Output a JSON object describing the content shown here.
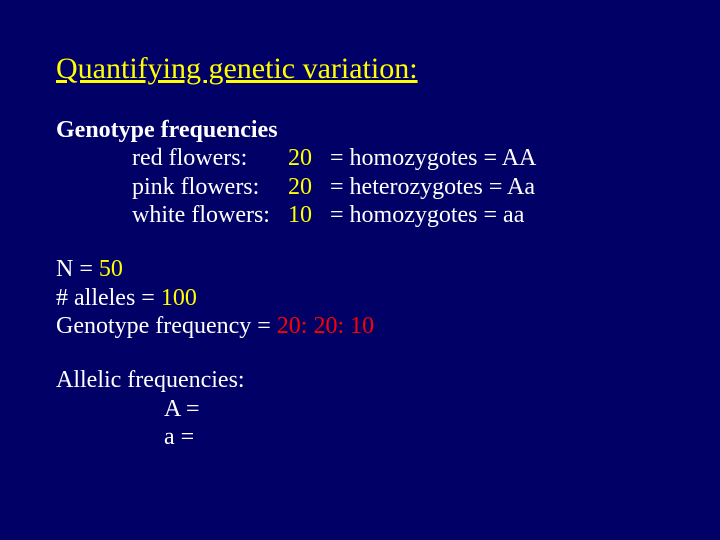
{
  "colors": {
    "background": "#000066",
    "title": "#ffff00",
    "body_text": "#ffffff",
    "highlight_yellow": "#ffff00",
    "highlight_red": "#ff0000"
  },
  "typography": {
    "family": "Times New Roman",
    "title_fontsize": 30,
    "body_fontsize": 24
  },
  "title": "Quantifying genetic variation:",
  "section1_heading": "Genotype frequencies",
  "flowers": [
    {
      "label": "red flowers:",
      "count": "20",
      "desc": "= homozygotes  = AA"
    },
    {
      "label": "pink flowers:",
      "count": "20",
      "desc": "= heterozygotes = Aa"
    },
    {
      "label": "white flowers:",
      "count": "10",
      "desc": "= homozygotes  = aa"
    }
  ],
  "n_label": "N = ",
  "n_value": "50",
  "alleles_label": "# alleles = ",
  "alleles_value": "100",
  "gf_label": "Genotype frequency = ",
  "gf_value": "20: 20: 10",
  "allelic_heading": "Allelic frequencies:",
  "allele_A": "A =",
  "allele_a": " a ="
}
